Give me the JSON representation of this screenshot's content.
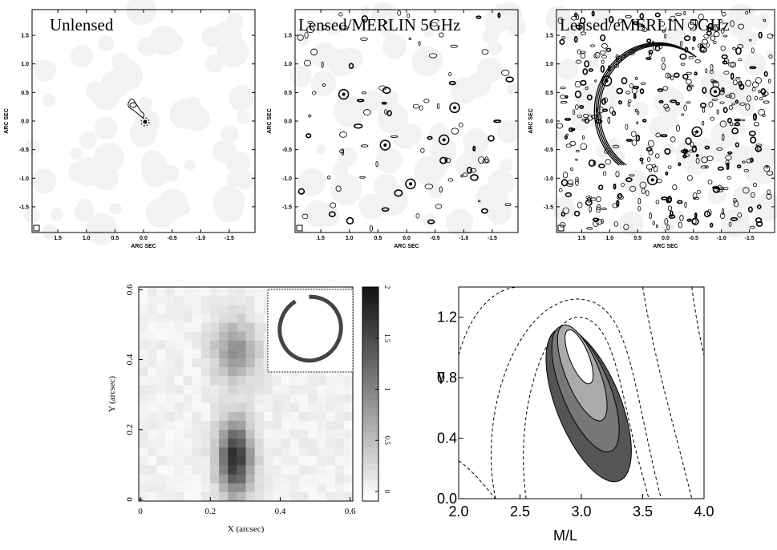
{
  "top_panels": [
    {
      "title": "Unlensed",
      "xlabel": "ARC SEC",
      "ylabel": "ARC SEC",
      "xticks": [
        "1.5",
        "1.0",
        "0.5",
        "0.0",
        "-0.5",
        "-1.0",
        "-1.5"
      ],
      "yticks": [
        "1.5",
        "1.0",
        "0.5",
        "0.0",
        "-0.5",
        "-1.0",
        "-1.5"
      ]
    },
    {
      "title": "Lensed/MERLIN 5GHz",
      "xlabel": "ARC SEC",
      "ylabel": "ARC SEC",
      "xticks": [
        "1.5",
        "1.0",
        "0.5",
        "0.0",
        "-0.5",
        "-1.0",
        "-1.5"
      ],
      "yticks": [
        "1.5",
        "1.0",
        "0.5",
        "0.0",
        "-0.5",
        "-1.0",
        "-1.5"
      ]
    },
    {
      "title": "Lensed/eMERLIN 5GHz",
      "xlabel": "ARC SEC",
      "ylabel": "ARC SEC",
      "xticks": [
        "1.5",
        "1.0",
        "0.5",
        "0.0",
        "-0.5",
        "-1.0",
        "-1.5"
      ],
      "yticks": [
        "1.5",
        "1.0",
        "0.5",
        "0.0",
        "-0.5",
        "-1.0",
        "-1.5"
      ]
    }
  ],
  "image_panel": {
    "xlabel": "X (arcsec)",
    "ylabel": "Y (arcsec)",
    "xticks": [
      "0",
      "0.2",
      "0.4",
      "0.6"
    ],
    "yticks": [
      "0",
      "0.2",
      "0.4",
      "0.6"
    ],
    "colorbar_ticks": [
      "0",
      "0.5",
      "1",
      "1.5",
      "2"
    ]
  },
  "contour_panel": {
    "xlabel": "M/L",
    "ylabel": "γ",
    "xticks": [
      "2.0",
      "2.5",
      "3.0",
      "3.5",
      "4.0"
    ],
    "yticks": [
      "0.0",
      "0.4",
      "0.8",
      "1.2"
    ]
  }
}
